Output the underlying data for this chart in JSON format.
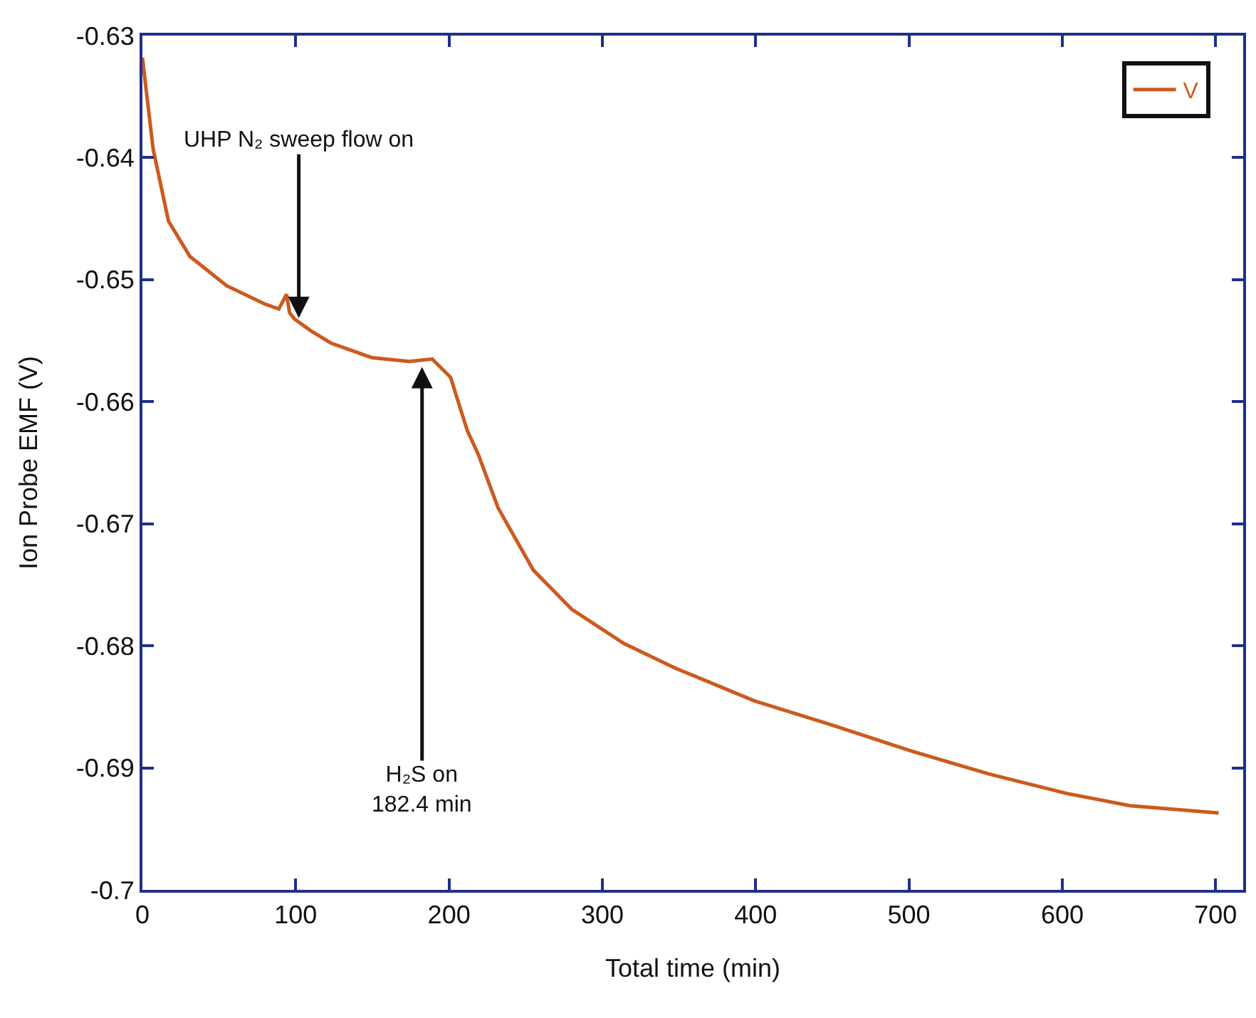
{
  "chart_data": {
    "type": "line",
    "xlabel": "Total time (min)",
    "ylabel": "Ion Probe EMF (V)",
    "xlim": [
      0,
      718
    ],
    "xticks": [
      0,
      100,
      200,
      300,
      400,
      500,
      600,
      700
    ],
    "ylim": [
      -0.7,
      -0.63
    ],
    "yticks": [
      -0.7,
      -0.69,
      -0.68,
      -0.67,
      -0.66,
      -0.65,
      -0.64,
      -0.63
    ],
    "grid": false,
    "legend": "top right",
    "marker": "none",
    "line_style": "solid",
    "annotations": [
      {
        "text": "UHP N₂ sweep flow on",
        "x": 102,
        "y": -0.6535
      },
      {
        "text": "H₂S on\n182.4 min",
        "x": 182.4,
        "y": -0.6568
      }
    ],
    "series": [
      {
        "name": "V",
        "color": "#cc5a1e",
        "x": [
          0,
          7,
          17,
          31,
          55,
          80,
          89,
          94,
          96,
          99,
          110,
          123,
          150,
          174,
          189,
          201,
          212,
          219,
          232,
          255,
          280,
          314,
          347,
          399,
          450,
          501,
          552,
          603,
          644,
          702
        ],
        "values": [
          -0.6318,
          -0.6393,
          -0.6452,
          -0.6481,
          -0.6505,
          -0.652,
          -0.6524,
          -0.6512,
          -0.6527,
          -0.6532,
          -0.6542,
          -0.6552,
          -0.6564,
          -0.6567,
          -0.6565,
          -0.658,
          -0.6624,
          -0.6643,
          -0.6687,
          -0.6738,
          -0.677,
          -0.6798,
          -0.6818,
          -0.6845,
          -0.6865,
          -0.6886,
          -0.6905,
          -0.6921,
          -0.6931,
          -0.6937
        ]
      }
    ]
  }
}
